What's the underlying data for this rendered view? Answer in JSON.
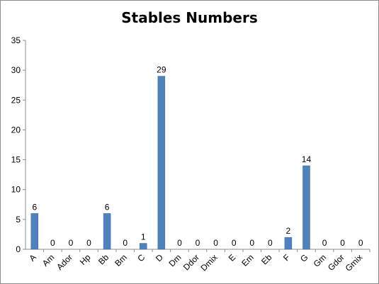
{
  "chart_data": {
    "type": "bar",
    "title": "Stables Numbers",
    "xlabel": "",
    "ylabel": "",
    "categories": [
      "A",
      "Am",
      "Ador",
      "Hp",
      "Bb",
      "Bm",
      "C",
      "D",
      "Dm",
      "Ddor",
      "Dmix",
      "E",
      "Em",
      "Eb",
      "F",
      "G",
      "Gm",
      "Gdor",
      "Gmix"
    ],
    "values": [
      6,
      0,
      0,
      0,
      6,
      0,
      1,
      29,
      0,
      0,
      0,
      0,
      0,
      0,
      2,
      14,
      0,
      0,
      0
    ],
    "ylim": [
      0,
      35
    ],
    "yticks": [
      0,
      5,
      10,
      15,
      20,
      25,
      30,
      35
    ],
    "grid": false,
    "legend": "none",
    "data_labels": true,
    "colors": {
      "bar": "#4f81bd",
      "bar_edge": "#3a6aa3",
      "axis": "#8c8c8c"
    }
  }
}
